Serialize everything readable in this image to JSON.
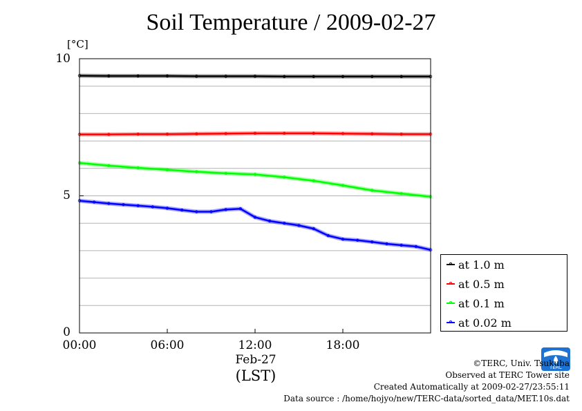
{
  "title": "Soil Temperature / 2009-02-27",
  "unit_label": "[°C]",
  "y_tick_labels": [
    "10",
    "5",
    "0"
  ],
  "x_tick_labels": [
    "00:00",
    "06:00",
    "12:00",
    "18:00"
  ],
  "x_sub_label": "Feb-27",
  "x_axis_label": "(LST)",
  "legend": {
    "items": [
      {
        "label": "at 1.0 m",
        "color": "#000000"
      },
      {
        "label": "at 0.5 m",
        "color": "#ff0000"
      },
      {
        "label": "at 0.1 m",
        "color": "#00ff00"
      },
      {
        "label": "at 0.02 m",
        "color": "#0000ff"
      }
    ]
  },
  "credits": {
    "line1": "©TERC, Univ. Tsukuba",
    "line2": "Observed at TERC Tower site",
    "line3": "Created Automatically at 2009-02-27/23:55:11",
    "line4": "Data source : /home/hojyo/new/TERC-data/sorted_data/MET.10s.dat"
  },
  "logo": {
    "text": "TERC",
    "color": "#1e73d2"
  },
  "chart_data": {
    "type": "line",
    "xlabel": "(LST)",
    "ylabel": "[°C]",
    "xlim": [
      0,
      24
    ],
    "ylim": [
      0,
      10
    ],
    "x_unit": "hour of day",
    "grid": true,
    "legend_position": "right",
    "series": [
      {
        "name": "at 1.0 m",
        "color": "#000000",
        "x": [
          0,
          2,
          4,
          6,
          8,
          10,
          12,
          14,
          16,
          18,
          20,
          22,
          24
        ],
        "y": [
          9.38,
          9.37,
          9.37,
          9.37,
          9.36,
          9.36,
          9.36,
          9.35,
          9.35,
          9.35,
          9.35,
          9.35,
          9.35
        ]
      },
      {
        "name": "at 0.5 m",
        "color": "#ff0000",
        "x": [
          0,
          2,
          4,
          6,
          8,
          10,
          12,
          14,
          16,
          18,
          20,
          22,
          24
        ],
        "y": [
          7.24,
          7.24,
          7.25,
          7.25,
          7.26,
          7.27,
          7.28,
          7.28,
          7.28,
          7.27,
          7.26,
          7.25,
          7.25
        ]
      },
      {
        "name": "at 0.1 m",
        "color": "#00ff00",
        "x": [
          0,
          2,
          4,
          6,
          8,
          10,
          12,
          14,
          16,
          18,
          20,
          22,
          24
        ],
        "y": [
          6.2,
          6.1,
          6.02,
          5.95,
          5.88,
          5.82,
          5.78,
          5.68,
          5.55,
          5.38,
          5.2,
          5.08,
          4.97
        ]
      },
      {
        "name": "at 0.02 m",
        "color": "#0000ff",
        "x": [
          0,
          1,
          2,
          3,
          4,
          5,
          6,
          7,
          8,
          9,
          10,
          11,
          12,
          13,
          14,
          15,
          16,
          17,
          18,
          19,
          20,
          21,
          22,
          23,
          24
        ],
        "y": [
          4.82,
          4.77,
          4.72,
          4.68,
          4.64,
          4.6,
          4.55,
          4.48,
          4.42,
          4.42,
          4.5,
          4.53,
          4.22,
          4.08,
          4.0,
          3.92,
          3.8,
          3.55,
          3.42,
          3.38,
          3.32,
          3.25,
          3.2,
          3.15,
          3.03
        ]
      }
    ]
  }
}
